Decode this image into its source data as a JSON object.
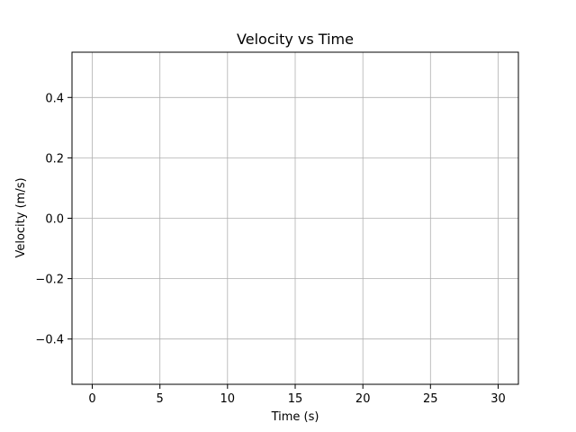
{
  "chart_data": {
    "type": "line",
    "title": "Velocity vs Time",
    "xlabel": "Time (s)",
    "ylabel": "Velocity (m/s)",
    "xlim": [
      -1.5,
      31.5
    ],
    "ylim": [
      -0.55,
      0.55
    ],
    "x_ticks": [
      0,
      5,
      10,
      15,
      20,
      25,
      30
    ],
    "x_tick_labels": [
      "0",
      "5",
      "10",
      "15",
      "20",
      "25",
      "30"
    ],
    "y_ticks": [
      -0.4,
      -0.2,
      0.0,
      0.2,
      0.4
    ],
    "y_tick_labels": [
      "−0.4",
      "−0.2",
      "0.0",
      "0.2",
      "0.4"
    ],
    "grid": true,
    "series": [],
    "colors": {
      "background": "#ffffff",
      "axes": "#000000",
      "grid": "#b0b0b0"
    }
  }
}
